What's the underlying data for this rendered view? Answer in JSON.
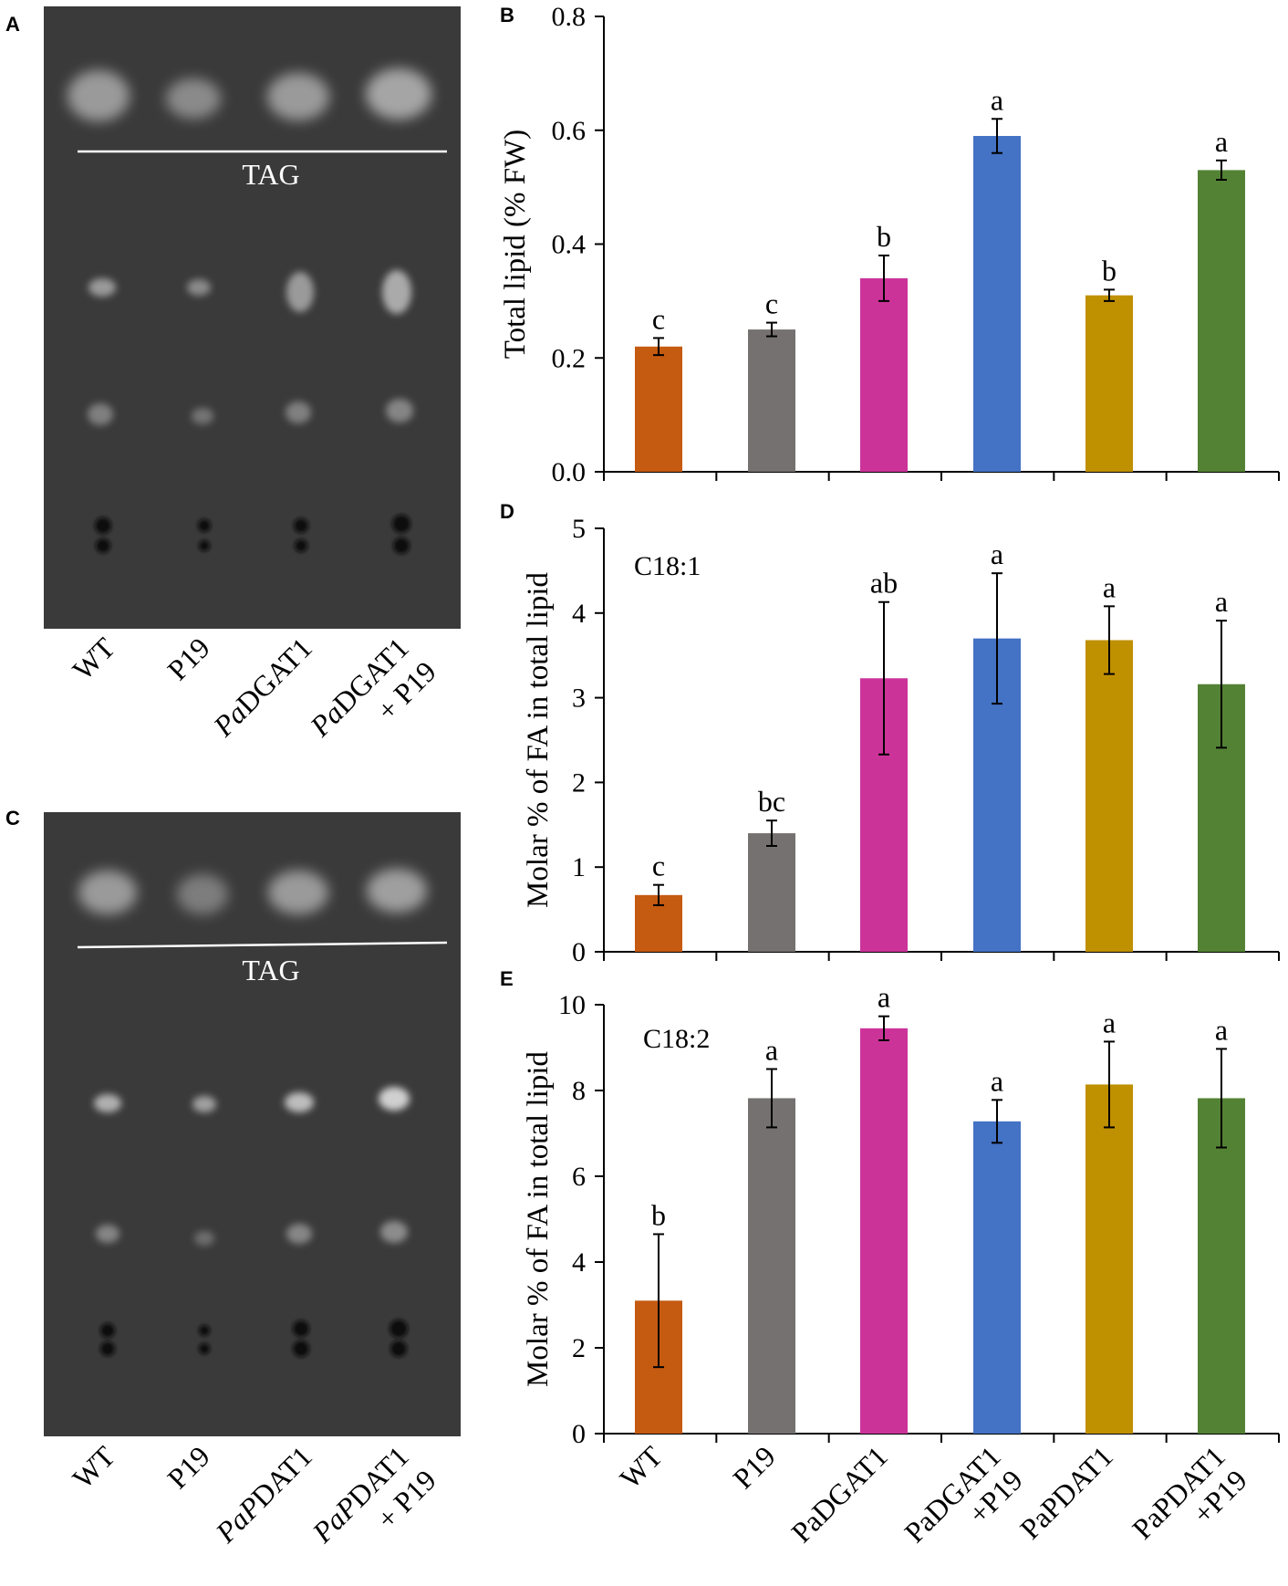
{
  "figure": {
    "panel_letters": [
      "A",
      "B",
      "C",
      "D",
      "E"
    ],
    "tlc_top": {
      "band_label": "TAG",
      "lanes": [
        {
          "label": "WT",
          "italic": "",
          "rest": "",
          "line2": ""
        },
        {
          "label": "P19",
          "italic": "",
          "rest": "",
          "line2": ""
        },
        {
          "label": "",
          "italic": "Pa",
          "rest": "DGAT1",
          "line2": ""
        },
        {
          "label": "",
          "italic": "Pa",
          "rest": "DGAT1",
          "line2": "+ P19"
        }
      ]
    },
    "tlc_bottom": {
      "band_label": "TAG",
      "lanes": [
        {
          "label": "WT",
          "italic": "",
          "rest": "",
          "line2": ""
        },
        {
          "label": "P19",
          "italic": "",
          "rest": "",
          "line2": ""
        },
        {
          "label": "",
          "italic": "PaP",
          "rest": "DAT1",
          "line2": ""
        },
        {
          "label": "",
          "italic": "PaP",
          "rest": "DAT1",
          "line2": "+ P19"
        }
      ]
    },
    "shared_categories": [
      {
        "line1": "WT",
        "line2": ""
      },
      {
        "line1": "P19",
        "line2": ""
      },
      {
        "line1": "PaDGAT1",
        "line2": ""
      },
      {
        "line1": "PaDGAT1",
        "line2": "+P19"
      },
      {
        "line1": "PaPDAT1",
        "line2": ""
      },
      {
        "line1": "PaPDAT1",
        "line2": "+P19"
      }
    ]
  },
  "colors": [
    "#c55a11",
    "#767171",
    "#cc3399",
    "#4472c4",
    "#bf9000",
    "#548235"
  ],
  "chart_data": [
    {
      "panel": "B",
      "type": "bar",
      "ylabel": "Total lipid (% FW)",
      "ylim": [
        0,
        0.8
      ],
      "yticks": [
        "0.0",
        "0.2",
        "0.4",
        "0.6",
        "0.8"
      ],
      "categories": [
        "WT",
        "P19",
        "PaDGAT1",
        "PaDGAT1 +P19",
        "PaPDAT1",
        "PaPDAT1 +P19"
      ],
      "values": [
        0.22,
        0.25,
        0.34,
        0.59,
        0.31,
        0.53
      ],
      "errors": [
        0.015,
        0.012,
        0.04,
        0.03,
        0.01,
        0.017
      ],
      "significance": [
        "c",
        "c",
        "b",
        "a",
        "b",
        "a"
      ],
      "annotation": ""
    },
    {
      "panel": "D",
      "type": "bar",
      "ylabel": "Molar % of FA in total lipid",
      "ylim": [
        0,
        5
      ],
      "yticks": [
        "0",
        "1",
        "2",
        "3",
        "4",
        "5"
      ],
      "categories": [
        "WT",
        "P19",
        "PaDGAT1",
        "PaDGAT1 +P19",
        "PaPDAT1",
        "PaPDAT1 +P19"
      ],
      "values": [
        0.67,
        1.4,
        3.23,
        3.7,
        3.68,
        3.16
      ],
      "errors": [
        0.12,
        0.15,
        0.9,
        0.77,
        0.4,
        0.75
      ],
      "significance": [
        "c",
        "bc",
        "ab",
        "a",
        "a",
        "a"
      ],
      "annotation": "C18:1"
    },
    {
      "panel": "E",
      "type": "bar",
      "ylabel": "Molar % of FA in total lipid",
      "ylim": [
        0,
        10
      ],
      "yticks": [
        "0",
        "2",
        "4",
        "6",
        "8",
        "10"
      ],
      "categories": [
        "WT",
        "P19",
        "PaDGAT1",
        "PaDGAT1 +P19",
        "PaPDAT1",
        "PaPDAT1 +P19"
      ],
      "values": [
        3.1,
        7.82,
        9.45,
        7.28,
        8.14,
        7.82
      ],
      "errors": [
        1.55,
        0.68,
        0.28,
        0.5,
        1.0,
        1.15
      ],
      "significance": [
        "b",
        "a",
        "a",
        "a",
        "a",
        "a"
      ],
      "annotation": "C18:2"
    }
  ]
}
